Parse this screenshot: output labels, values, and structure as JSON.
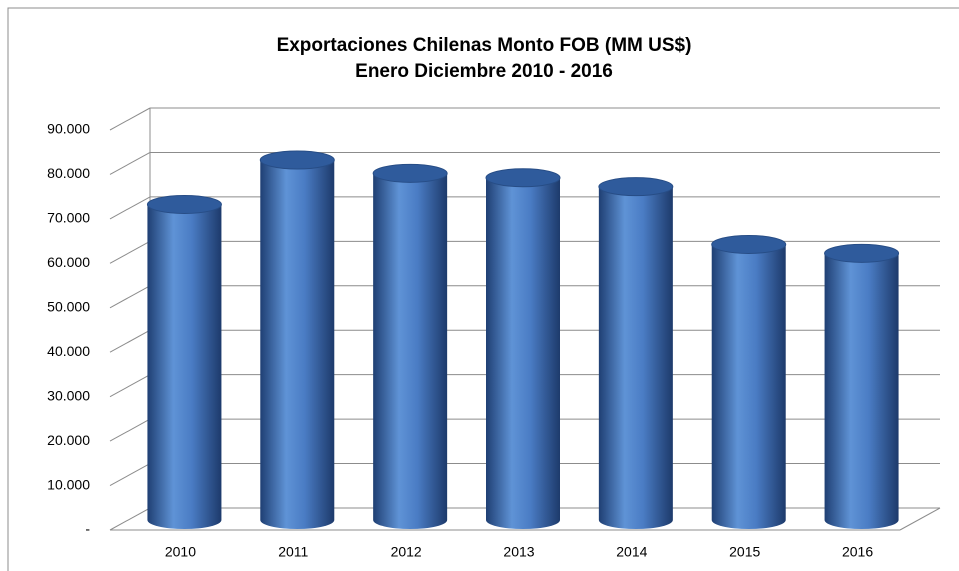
{
  "chart_data": {
    "type": "bar",
    "title": "Exportaciones Chilenas Monto FOB (MM US$)",
    "subtitle": "Enero Diciembre 2010 - 2016",
    "categories": [
      "2010",
      "2011",
      "2012",
      "2013",
      "2014",
      "2015",
      "2016"
    ],
    "values": [
      71000,
      81000,
      78000,
      77000,
      75000,
      62000,
      60000
    ],
    "color": "#4a7cc4",
    "ylim": [
      0,
      90000
    ],
    "yticks": [
      {
        "value": 0,
        "label": "-"
      },
      {
        "value": 10000,
        "label": "10.000"
      },
      {
        "value": 20000,
        "label": "20.000"
      },
      {
        "value": 30000,
        "label": "30.000"
      },
      {
        "value": 40000,
        "label": "40.000"
      },
      {
        "value": 50000,
        "label": "50.000"
      },
      {
        "value": 60000,
        "label": "60.000"
      },
      {
        "value": 70000,
        "label": "70.000"
      },
      {
        "value": 80000,
        "label": "80.000"
      },
      {
        "value": 90000,
        "label": "90.000"
      }
    ],
    "grid": true
  }
}
